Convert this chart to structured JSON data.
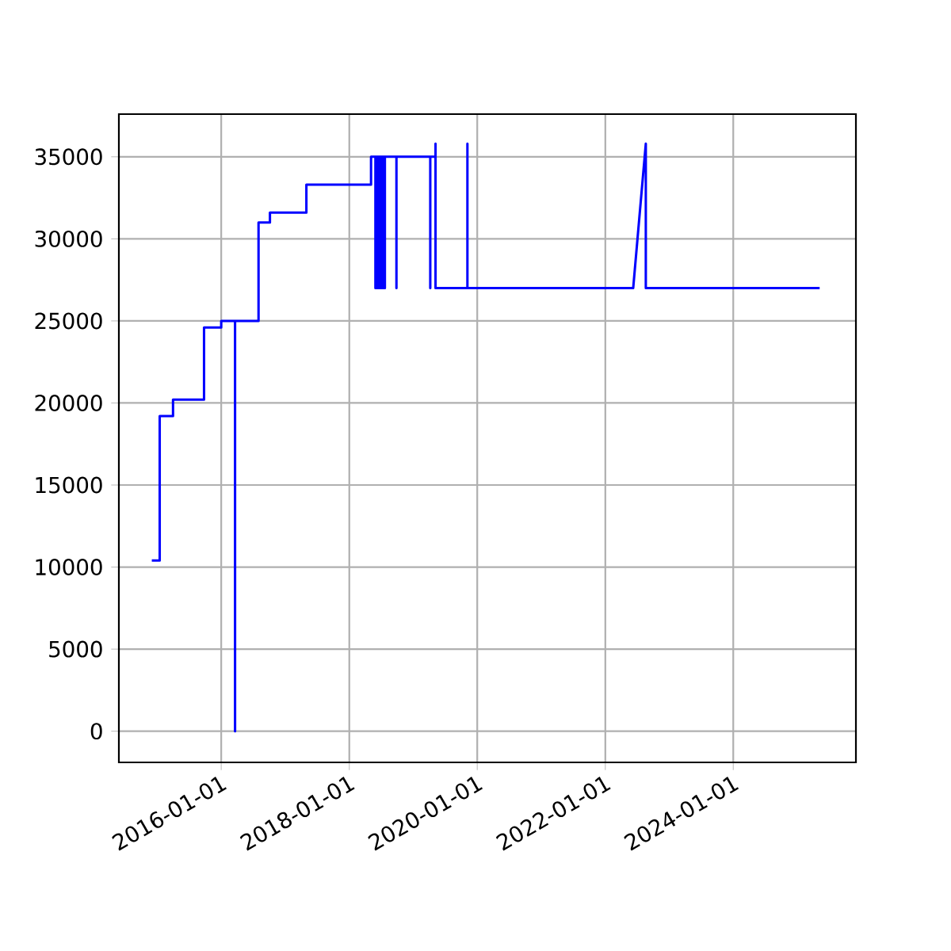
{
  "chart_data": {
    "type": "line",
    "color": "#0000ff",
    "grid": true,
    "x": [
      "2014-12-01",
      "2015-01-15",
      "2015-01-15",
      "2015-04-01",
      "2015-04-01",
      "2015-09-25",
      "2015-09-25",
      "2016-01-01",
      "2016-01-01",
      "2016-03-20",
      "2016-03-20",
      "2016-03-20",
      "2016-08-01",
      "2016-08-01",
      "2016-10-05",
      "2016-10-05",
      "2017-05-01",
      "2017-05-01",
      "2018-05-05",
      "2018-05-05",
      "2018-05-30",
      "2018-05-30",
      "2018-05-30",
      "2018-06-06",
      "2018-06-06",
      "2018-06-06",
      "2018-06-13",
      "2018-06-13",
      "2018-06-13",
      "2018-06-20",
      "2018-06-20",
      "2018-06-20",
      "2018-06-27",
      "2018-06-27",
      "2018-06-27",
      "2018-07-04",
      "2018-07-04",
      "2018-07-04",
      "2018-07-11",
      "2018-07-11",
      "2018-07-11",
      "2018-07-18",
      "2018-07-18",
      "2018-07-18",
      "2018-07-23",
      "2018-07-23",
      "2018-07-23",
      "2018-09-27",
      "2018-09-27",
      "2018-09-27",
      "2019-04-08",
      "2019-04-08",
      "2019-04-08",
      "2019-05-08",
      "2019-05-08",
      "2019-05-08",
      "2019-11-06",
      "2019-11-06",
      "2019-11-06",
      "2022-06-09",
      "2022-08-20",
      "2022-08-20",
      "2025-05-08"
    ],
    "values": [
      10400,
      10400,
      19200,
      19200,
      20200,
      20200,
      24600,
      24600,
      25000,
      25000,
      0,
      25000,
      25000,
      31000,
      31000,
      31600,
      31600,
      33300,
      33300,
      35000,
      35000,
      27000,
      35000,
      35000,
      27000,
      35000,
      35000,
      27000,
      35000,
      35000,
      27000,
      35000,
      35000,
      27000,
      35000,
      35000,
      27000,
      35000,
      35000,
      27000,
      35000,
      35000,
      27000,
      35000,
      35000,
      27000,
      35000,
      35000,
      27000,
      35000,
      35000,
      27000,
      35000,
      35000,
      35800,
      27000,
      27000,
      35800,
      27000,
      27000,
      35800,
      27000,
      27000
    ],
    "xlim": [
      "2014-05-27",
      "2025-12-01"
    ],
    "xticks": [
      "2016-01-01",
      "2018-01-01",
      "2020-01-01",
      "2022-01-01",
      "2024-01-01"
    ],
    "ylim": [
      -1900,
      37600
    ],
    "yticks": [
      0,
      5000,
      10000,
      15000,
      20000,
      25000,
      30000,
      35000
    ]
  }
}
